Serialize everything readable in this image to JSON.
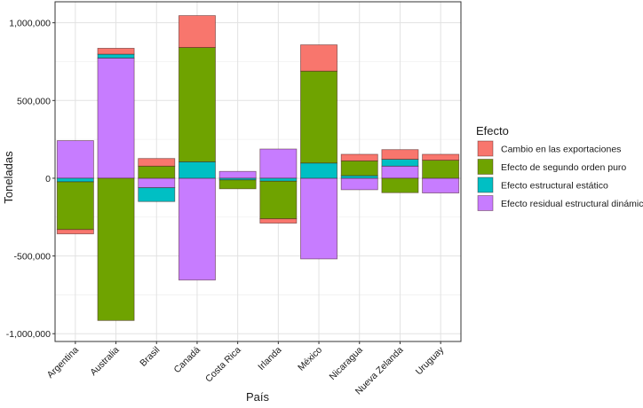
{
  "chart_data": {
    "type": "bar",
    "stacked": true,
    "xlabel": "País",
    "ylabel": "Toneladas",
    "categories": [
      "Argentina",
      "Australia",
      "Brasil",
      "Canadá",
      "Costa Rica",
      "Irlanda",
      "México",
      "Nicaragua",
      "Nueva Zelanda",
      "Uruguay"
    ],
    "ylim": [
      -1050000,
      1135000
    ],
    "yticks": [
      -1000000,
      -500000,
      0,
      500000,
      1000000
    ],
    "ytick_labels": [
      "-1,000,000",
      "-500,000",
      "0",
      "500,000",
      "1,000,000"
    ],
    "grid": true,
    "legend": {
      "title": "Efecto",
      "placement": "right"
    },
    "series": [
      {
        "name": "Cambio en las exportaciones",
        "color": "#F8766D",
        "values": [
          -28000,
          38000,
          49000,
          205000,
          0,
          -28000,
          169000,
          42000,
          62000,
          38000
        ]
      },
      {
        "name": "Efecto de segundo orden puro",
        "color": "#6FA300",
        "values": [
          -307000,
          -915000,
          78000,
          735000,
          -57000,
          -242000,
          591000,
          95000,
          -93000,
          116000
        ]
      },
      {
        "name": "Efecto estructural estático",
        "color": "#00BFC4",
        "values": [
          -23000,
          25000,
          -89000,
          106000,
          -11000,
          -19000,
          98000,
          17000,
          44000,
          0
        ]
      },
      {
        "name": "Efecto residual estructural dinámico",
        "color": "#C77CFF",
        "values": [
          242000,
          773000,
          -61000,
          -655000,
          44000,
          188000,
          -519000,
          -74000,
          78000,
          -95000
        ]
      }
    ]
  }
}
